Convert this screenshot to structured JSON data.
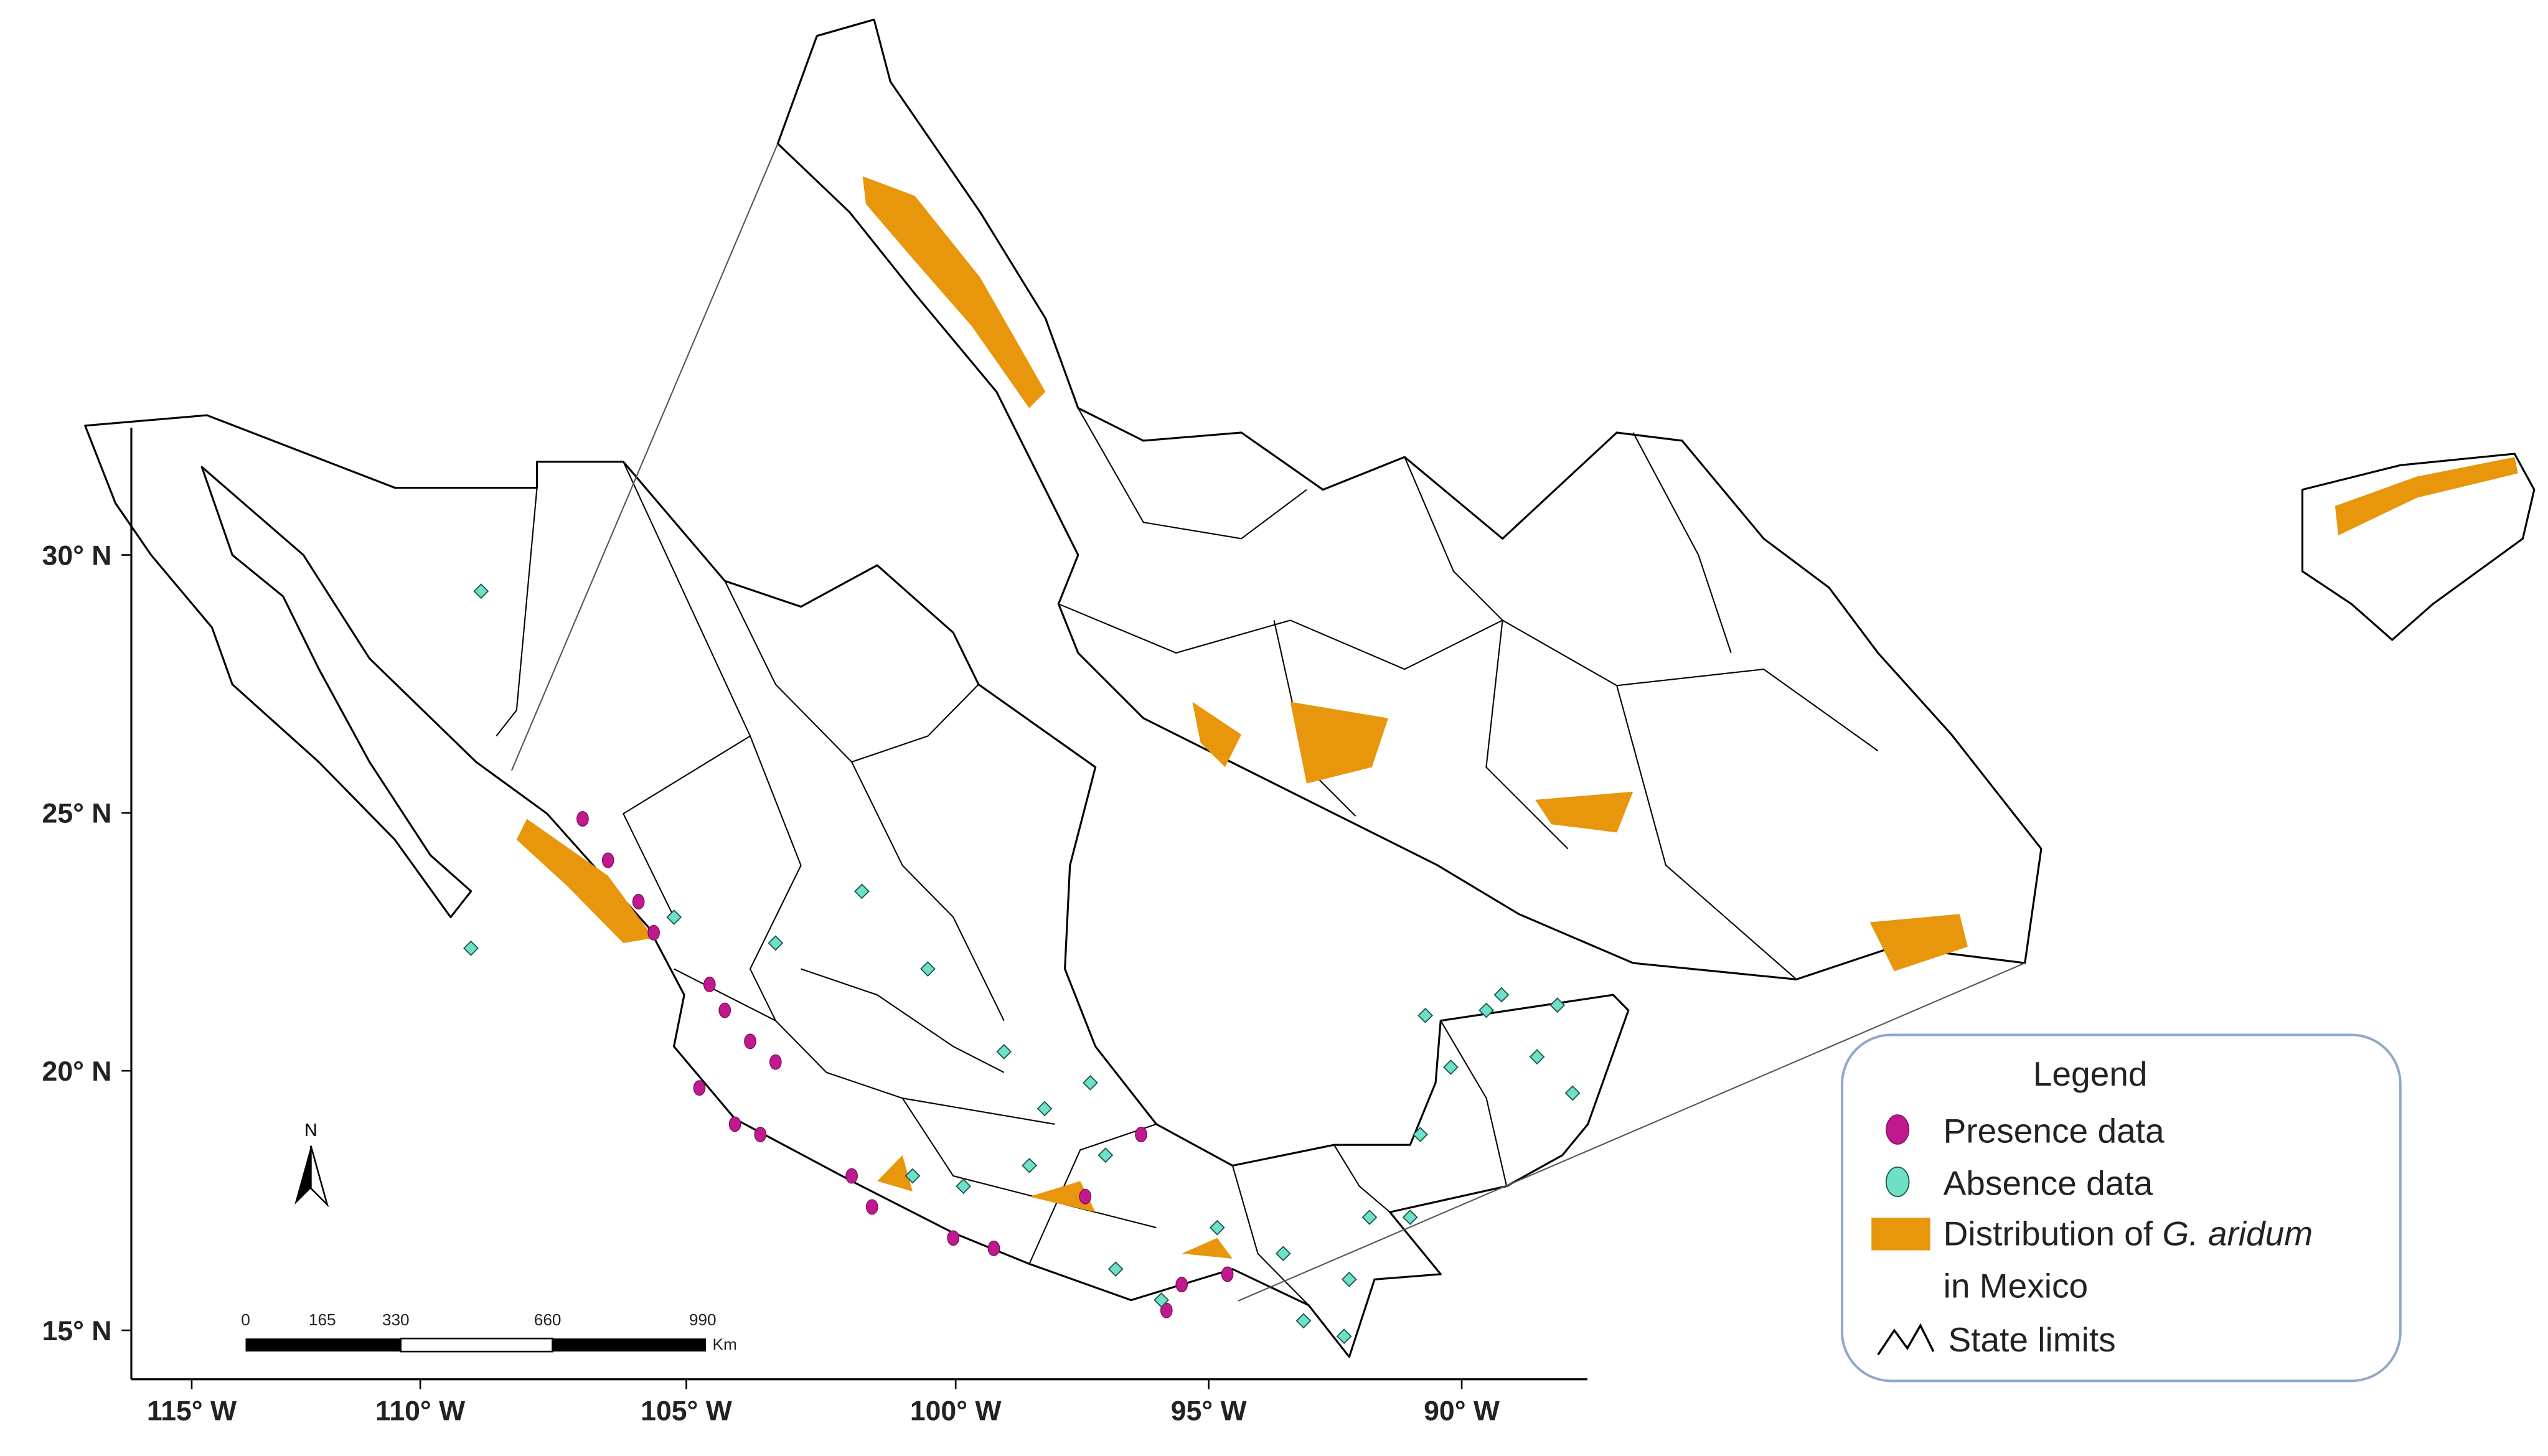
{
  "map": {
    "latitude_labels": [
      "30° N",
      "25° N",
      "20° N",
      "15° N"
    ],
    "longitude_labels": [
      "115° W",
      "110° W",
      "105° W",
      "100° W",
      "95° W",
      "90° W"
    ],
    "north_label": "N",
    "scale_bar": {
      "labels": [
        "0",
        "165",
        "330",
        "660",
        "990"
      ],
      "unit": "Km"
    },
    "legend": {
      "title": "Legend",
      "presence": "Presence data",
      "absence": "Absence data",
      "distribution": {
        "prefix": "Distribution of ",
        "species": "G. aridum",
        "suffix": "in Mexico"
      },
      "state_limits": "State limits"
    }
  }
}
